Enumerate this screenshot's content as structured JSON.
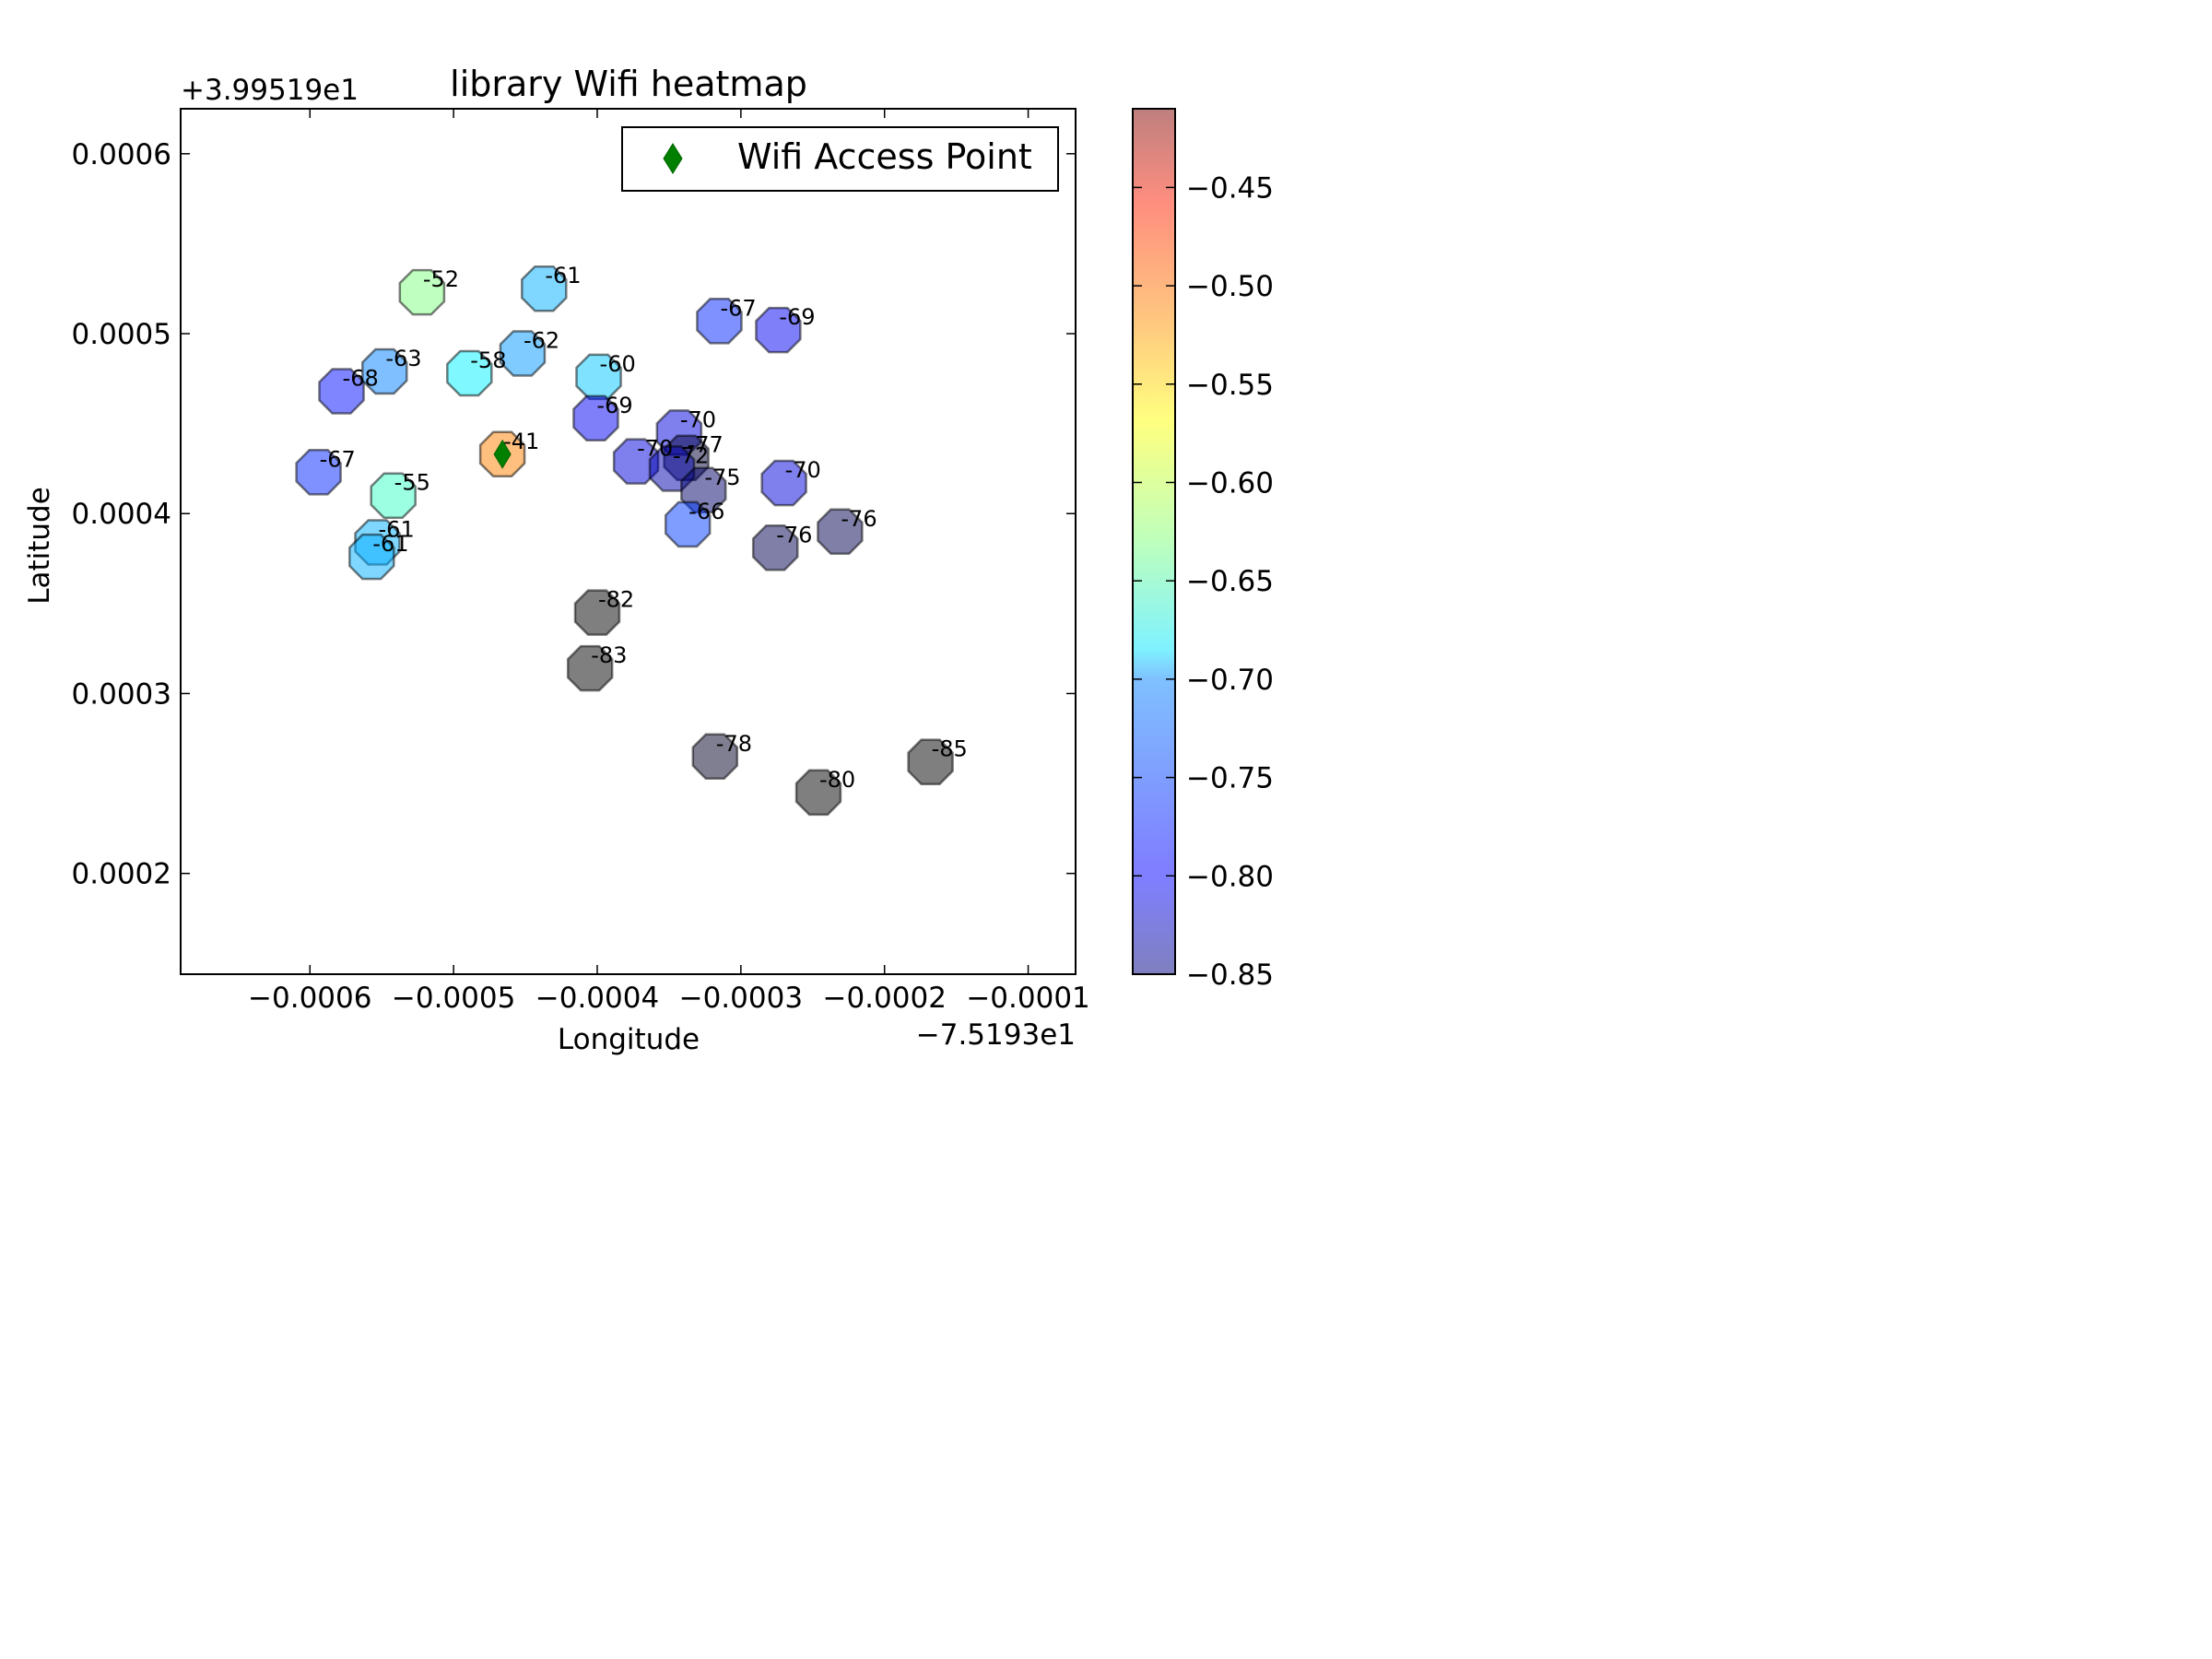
{
  "chart_data": {
    "type": "scatter",
    "title": "library Wifi heatmap",
    "xlabel": "Longitude",
    "ylabel": "Latitude",
    "x_offset_text": "−7.5193e1",
    "y_offset_text": "+3.99519e1",
    "xlim": [
      -0.00069,
      -6.7e-05
    ],
    "ylim": [
      0.000144,
      0.000625
    ],
    "xticks": [
      -0.0006,
      -0.0005,
      -0.0004,
      -0.0003,
      -0.0002,
      -0.0001
    ],
    "xtick_labels": [
      "−0.0006",
      "−0.0005",
      "−0.0004",
      "−0.0003",
      "−0.0002",
      "−0.0001"
    ],
    "yticks": [
      0.0002,
      0.0003,
      0.0004,
      0.0005,
      0.0006
    ],
    "ytick_labels": [
      "0.0002",
      "0.0003",
      "0.0004",
      "0.0005",
      "0.0006"
    ],
    "legend": {
      "label": "Wifi Access Point",
      "placement": "top-right"
    },
    "access_point": {
      "x": -0.000466,
      "y": 0.000433
    },
    "colorbar": {
      "colormap": "jet",
      "alpha": 0.5,
      "range": [
        -0.85,
        -0.41
      ],
      "ticks": [
        -0.45,
        -0.5,
        -0.55,
        -0.6,
        -0.65,
        -0.7,
        -0.75,
        -0.8,
        -0.85
      ],
      "tick_labels": [
        "−0.45",
        "−0.50",
        "−0.55",
        "−0.60",
        "−0.65",
        "−0.70",
        "−0.75",
        "−0.80",
        "−0.85"
      ]
    },
    "marker": "octagon",
    "points": [
      {
        "x": -0.000522,
        "y": 0.000523,
        "label": "-52",
        "value": -0.52
      },
      {
        "x": -0.000437,
        "y": 0.000525,
        "label": "-61",
        "value": -0.61
      },
      {
        "x": -0.000315,
        "y": 0.000507,
        "label": "-67",
        "value": -0.67
      },
      {
        "x": -0.000274,
        "y": 0.000502,
        "label": "-69",
        "value": -0.69
      },
      {
        "x": -0.000452,
        "y": 0.000489,
        "label": "-62",
        "value": -0.62
      },
      {
        "x": -0.000548,
        "y": 0.000479,
        "label": "-63",
        "value": -0.63
      },
      {
        "x": -0.000489,
        "y": 0.000478,
        "label": "-58",
        "value": -0.58
      },
      {
        "x": -0.000399,
        "y": 0.000476,
        "label": "-60",
        "value": -0.6
      },
      {
        "x": -0.000578,
        "y": 0.000468,
        "label": "-68",
        "value": -0.68
      },
      {
        "x": -0.000401,
        "y": 0.000453,
        "label": "-69",
        "value": -0.69
      },
      {
        "x": -0.000343,
        "y": 0.000445,
        "label": "-70",
        "value": -0.7
      },
      {
        "x": -0.000466,
        "y": 0.000433,
        "label": "-41",
        "value": -0.41
      },
      {
        "x": -0.000373,
        "y": 0.000429,
        "label": "-70",
        "value": -0.7
      },
      {
        "x": -0.000338,
        "y": 0.000431,
        "label": "-77",
        "value": -0.77
      },
      {
        "x": -0.000348,
        "y": 0.000425,
        "label": "-72",
        "value": -0.72
      },
      {
        "x": -0.000594,
        "y": 0.000423,
        "label": "-67",
        "value": -0.67
      },
      {
        "x": -0.000326,
        "y": 0.000413,
        "label": "-75",
        "value": -0.75
      },
      {
        "x": -0.00027,
        "y": 0.000417,
        "label": "-70",
        "value": -0.7
      },
      {
        "x": -0.000542,
        "y": 0.00041,
        "label": "-55",
        "value": -0.55
      },
      {
        "x": -0.000337,
        "y": 0.000394,
        "label": "-66",
        "value": -0.66
      },
      {
        "x": -0.000231,
        "y": 0.00039,
        "label": "-76",
        "value": -0.76
      },
      {
        "x": -0.000553,
        "y": 0.000384,
        "label": "-61",
        "value": -0.61
      },
      {
        "x": -0.000276,
        "y": 0.000381,
        "label": "-76",
        "value": -0.76
      },
      {
        "x": -0.000557,
        "y": 0.000376,
        "label": "-61",
        "value": -0.61
      },
      {
        "x": -0.0004,
        "y": 0.000345,
        "label": "-82",
        "value": -0.82
      },
      {
        "x": -0.000405,
        "y": 0.000314,
        "label": "-83",
        "value": -0.83
      },
      {
        "x": -0.000318,
        "y": 0.000265,
        "label": "-78",
        "value": -0.78
      },
      {
        "x": -0.000168,
        "y": 0.000262,
        "label": "-85",
        "value": -0.85
      },
      {
        "x": -0.000246,
        "y": 0.000245,
        "label": "-80",
        "value": -0.8
      }
    ]
  }
}
